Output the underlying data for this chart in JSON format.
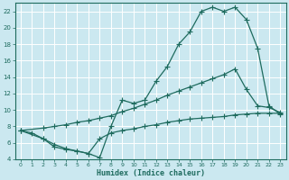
{
  "xlabel": "Humidex (Indice chaleur)",
  "bg_color": "#cbe8f0",
  "grid_color": "#ffffff",
  "line_color": "#1e6b5e",
  "xlim": [
    -0.5,
    23.5
  ],
  "ylim": [
    4,
    23
  ],
  "yticks": [
    4,
    6,
    8,
    10,
    12,
    14,
    16,
    18,
    20,
    22
  ],
  "xticks": [
    0,
    1,
    2,
    3,
    4,
    5,
    6,
    7,
    8,
    9,
    10,
    11,
    12,
    13,
    14,
    15,
    16,
    17,
    18,
    19,
    20,
    21,
    22,
    23
  ],
  "line1_x": [
    0,
    1,
    2,
    3,
    4,
    5,
    6,
    7,
    8,
    9,
    10,
    11,
    12,
    13,
    14,
    15,
    16,
    17,
    18,
    19,
    20,
    21,
    22,
    23
  ],
  "line1_y": [
    7.5,
    7.2,
    6.5,
    5.5,
    5.2,
    5.0,
    4.7,
    4.2,
    8.0,
    11.2,
    10.8,
    11.2,
    13.5,
    15.3,
    18.0,
    19.5,
    22.0,
    22.5,
    22.0,
    22.5,
    21.0,
    17.5,
    10.5,
    9.5
  ],
  "line2_x": [
    0,
    2,
    3,
    4,
    5,
    6,
    7,
    8,
    9,
    10,
    11,
    12,
    13,
    14,
    15,
    16,
    17,
    18,
    19,
    20,
    21,
    22,
    23
  ],
  "line2_y": [
    7.5,
    7.8,
    8.0,
    8.2,
    8.5,
    8.7,
    9.0,
    9.3,
    9.8,
    10.2,
    10.7,
    11.2,
    11.8,
    12.3,
    12.8,
    13.3,
    13.8,
    14.3,
    15.0,
    12.5,
    10.5,
    10.3,
    9.7
  ],
  "line3_x": [
    0,
    2,
    3,
    4,
    5,
    6,
    7,
    8,
    9,
    10,
    11,
    12,
    13,
    14,
    15,
    16,
    17,
    18,
    19,
    20,
    21,
    22,
    23
  ],
  "line3_y": [
    7.5,
    6.5,
    5.8,
    5.3,
    5.0,
    4.7,
    6.5,
    7.2,
    7.5,
    7.7,
    8.0,
    8.2,
    8.5,
    8.7,
    8.9,
    9.0,
    9.1,
    9.2,
    9.4,
    9.5,
    9.6,
    9.6,
    9.6
  ]
}
